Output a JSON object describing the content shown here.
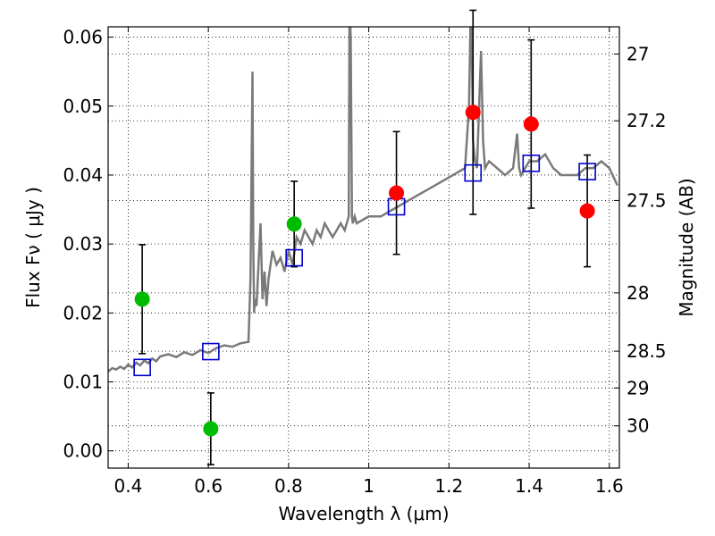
{
  "chart_data": {
    "type": "scatter",
    "xlabel": "Wavelength  λ (μm)",
    "ylabel": "Flux  Fν  ( μJy )",
    "y2label": "Magnitude (AB)",
    "xlim": [
      0.35,
      1.625
    ],
    "ylim": [
      -0.0025,
      0.0615
    ],
    "grid": true,
    "x_ticks": [
      {
        "value": 0.4,
        "label": "0.4"
      },
      {
        "value": 0.6,
        "label": "0.6"
      },
      {
        "value": 0.8,
        "label": "0.8"
      },
      {
        "value": 1.0,
        "label": "1"
      },
      {
        "value": 1.2,
        "label": "1.2"
      },
      {
        "value": 1.4,
        "label": "1.4"
      },
      {
        "value": 1.6,
        "label": "1.6"
      }
    ],
    "y_ticks": [
      {
        "value": 0.0,
        "label": "0.00"
      },
      {
        "value": 0.01,
        "label": "0.01"
      },
      {
        "value": 0.02,
        "label": "0.02"
      },
      {
        "value": 0.03,
        "label": "0.03"
      },
      {
        "value": 0.04,
        "label": "0.04"
      },
      {
        "value": 0.05,
        "label": "0.05"
      },
      {
        "value": 0.06,
        "label": "0.06"
      }
    ],
    "y2_ticks": [
      {
        "value": 27,
        "label": "27"
      },
      {
        "value": 27.2,
        "label": "27.2"
      },
      {
        "value": 27.5,
        "label": "27.5"
      },
      {
        "value": 28,
        "label": "28"
      },
      {
        "value": 28.5,
        "label": "28.5"
      },
      {
        "value": 29,
        "label": "29"
      },
      {
        "value": 30,
        "label": "30"
      }
    ],
    "colors": {
      "template": "#7a7a7a",
      "model": "#0000cc",
      "optical": "#00bb00",
      "nir": "#ff0000",
      "errorbar": "#000000"
    },
    "series": [
      {
        "kind": "template-spectrum",
        "x": [
          0.35,
          0.36,
          0.37,
          0.38,
          0.39,
          0.4,
          0.41,
          0.42,
          0.43,
          0.44,
          0.45,
          0.46,
          0.47,
          0.48,
          0.5,
          0.52,
          0.54,
          0.56,
          0.58,
          0.6,
          0.62,
          0.64,
          0.66,
          0.68,
          0.7,
          0.705,
          0.71,
          0.712,
          0.714,
          0.716,
          0.72,
          0.73,
          0.735,
          0.74,
          0.745,
          0.75,
          0.76,
          0.77,
          0.78,
          0.79,
          0.8,
          0.81,
          0.82,
          0.83,
          0.84,
          0.85,
          0.86,
          0.87,
          0.88,
          0.89,
          0.9,
          0.91,
          0.92,
          0.93,
          0.94,
          0.95,
          0.952,
          0.955,
          0.958,
          0.96,
          0.965,
          0.97,
          1.0,
          1.03,
          1.06,
          1.09,
          1.12,
          1.15,
          1.18,
          1.21,
          1.24,
          1.25,
          1.255,
          1.26,
          1.265,
          1.27,
          1.28,
          1.285,
          1.29,
          1.3,
          1.32,
          1.34,
          1.36,
          1.37,
          1.375,
          1.38,
          1.4,
          1.42,
          1.44,
          1.46,
          1.48,
          1.5,
          1.52,
          1.54,
          1.56,
          1.58,
          1.6,
          1.62
        ],
        "y": [
          0.0115,
          0.012,
          0.0118,
          0.0122,
          0.0119,
          0.0125,
          0.0121,
          0.0128,
          0.0124,
          0.0131,
          0.0127,
          0.0134,
          0.013,
          0.0137,
          0.014,
          0.0136,
          0.0143,
          0.0139,
          0.0146,
          0.0142,
          0.0149,
          0.0153,
          0.0151,
          0.0156,
          0.0158,
          0.025,
          0.055,
          0.03,
          0.02,
          0.022,
          0.021,
          0.033,
          0.022,
          0.026,
          0.021,
          0.025,
          0.029,
          0.027,
          0.028,
          0.026,
          0.029,
          0.027,
          0.031,
          0.03,
          0.032,
          0.031,
          0.03,
          0.032,
          0.031,
          0.033,
          0.032,
          0.031,
          0.032,
          0.033,
          0.032,
          0.034,
          0.065,
          0.06,
          0.034,
          0.033,
          0.034,
          0.033,
          0.034,
          0.034,
          0.035,
          0.036,
          0.037,
          0.038,
          0.039,
          0.04,
          0.041,
          0.05,
          0.067,
          0.045,
          0.042,
          0.041,
          0.058,
          0.045,
          0.041,
          0.042,
          0.041,
          0.04,
          0.041,
          0.046,
          0.041,
          0.04,
          0.042,
          0.042,
          0.043,
          0.041,
          0.04,
          0.04,
          0.04,
          0.041,
          0.041,
          0.042,
          0.041,
          0.0385
        ]
      },
      {
        "kind": "model-bands",
        "marker": "square",
        "x": [
          0.435,
          0.606,
          0.814,
          1.069,
          1.26,
          1.405,
          1.545
        ],
        "y": [
          0.0121,
          0.0144,
          0.028,
          0.0354,
          0.0403,
          0.0417,
          0.0405
        ]
      },
      {
        "kind": "observed-optical",
        "marker": "circle",
        "x": [
          0.435,
          0.606,
          0.814
        ],
        "y": [
          0.022,
          0.0032,
          0.0329
        ],
        "err": [
          0.0079,
          0.0052,
          0.0062
        ]
      },
      {
        "kind": "observed-nir",
        "marker": "circle",
        "x": [
          1.069,
          1.26,
          1.405,
          1.545
        ],
        "y": [
          0.0374,
          0.0491,
          0.0474,
          0.0348
        ],
        "err": [
          0.0089,
          0.0148,
          0.0122,
          0.0081
        ]
      }
    ]
  }
}
